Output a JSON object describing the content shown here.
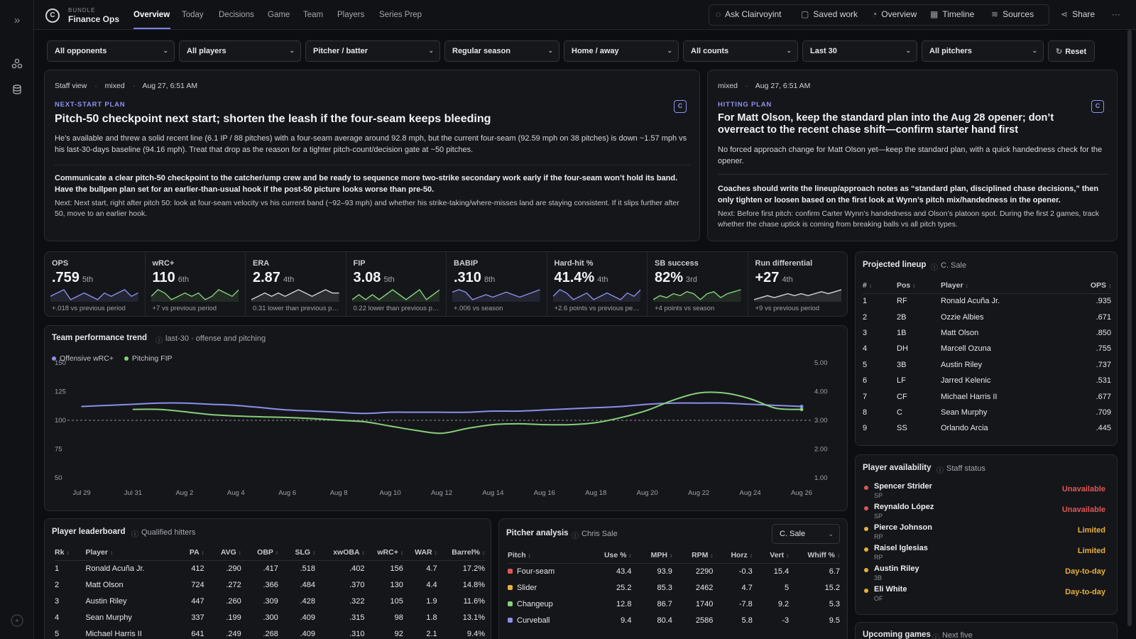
{
  "header": {
    "bundle_label": "BUNDLE",
    "bundle_name": "Finance Ops",
    "tabs": [
      "Overview",
      "Today",
      "Decisions",
      "Game",
      "Team",
      "Players",
      "Series Prep"
    ],
    "actions": [
      "Ask Clairvoyint",
      "Saved work",
      "Overview",
      "Timeline",
      "Sources"
    ],
    "share": "Share",
    "more": "···"
  },
  "filters": {
    "items": [
      "All opponents",
      "All players",
      "Pitcher / batter",
      "Regular season",
      "Home / away",
      "All counts",
      "Last 30",
      "All pitchers"
    ],
    "reset": "Reset"
  },
  "plan_left": {
    "meta": [
      "Staff view",
      "mixed",
      "Aug 27, 6:51 AM"
    ],
    "eyebrow": "NEXT-START PLAN",
    "title": "Pitch-50 checkpoint next start; shorten the leash if the four-seam keeps bleeding",
    "body": "He’s available and threw a solid recent line (6.1 IP / 88 pitches) with a four-seam average around 92.8 mph, but the current four-seam (92.59 mph on 38 pitches) is down ~1.57 mph vs his last-30-days baseline (94.16 mph). Treat that drop as the reason for a tighter pitch-count/decision gate at ~50 pitches.",
    "bold": "Communicate a clear pitch-50 checkpoint to the catcher/ump crew and be ready to sequence more two-strike secondary work early if the four-seam won’t hold its band. Have the bullpen plan set for an earlier-than-usual hook if the post-50 picture looks worse than pre-50.",
    "next": "Next: Next start, right after pitch 50: look at four-seam velocity vs his current band (~92–93 mph) and whether his strike-taking/where-misses land are staying consistent. If it slips further after 50, move to an earlier hook."
  },
  "plan_right": {
    "meta": [
      "mixed",
      "Aug 27, 6:51 AM"
    ],
    "eyebrow": "HITTING PLAN",
    "title": "For Matt Olson, keep the standard plan into the Aug 28 opener; don’t overreact to the recent chase shift—confirm starter hand first",
    "body": "No forced approach change for Matt Olson yet—keep the standard plan, with a quick handedness check for the opener.",
    "bold": "Coaches should write the lineup/approach notes as “standard plan, disciplined chase decisions,” then only tighten or loosen based on the first look at Wynn’s pitch mix/handedness in the opener.",
    "next": "Next: Before first pitch: confirm Carter Wynn’s handedness and Olson’s platoon spot. During the first 2 games, track whether the chase uptick is coming from breaking balls vs all pitch types."
  },
  "kpis": [
    {
      "label": "OPS",
      "value": ".759",
      "rank": "5th",
      "delta": "+.018 vs previous period",
      "spark": [
        5,
        6,
        7,
        4,
        5,
        6,
        5,
        4,
        6,
        5,
        6,
        7,
        5,
        6
      ]
    },
    {
      "label": "wRC+",
      "value": "110",
      "rank": "6th",
      "delta": "+7 vs previous period",
      "spark": [
        5,
        7,
        6,
        4,
        5,
        6,
        5,
        6,
        4,
        5,
        7,
        6,
        5,
        7
      ]
    },
    {
      "label": "ERA",
      "value": "2.87",
      "rank": "4th",
      "delta": "0.31 lower than previous period",
      "spark": [
        4,
        5,
        6,
        5,
        6,
        5,
        6,
        7,
        6,
        5,
        6,
        7,
        6,
        6
      ]
    },
    {
      "label": "FIP",
      "value": "3.08",
      "rank": "5th",
      "delta": "0.22 lower than previous period",
      "spark": [
        5,
        6,
        5,
        6,
        5,
        6,
        7,
        6,
        5,
        6,
        7,
        5,
        6,
        7
      ]
    },
    {
      "label": "BABIP",
      "value": ".310",
      "rank": "8th",
      "delta": "+.006 vs season",
      "spark": [
        6,
        7,
        6,
        3,
        4,
        5,
        4,
        5,
        6,
        5,
        4,
        5,
        6,
        7
      ]
    },
    {
      "label": "Hard-hit %",
      "value": "41.4%",
      "rank": "4th",
      "delta": "+2.6 points vs previous period",
      "spark": [
        5,
        7,
        6,
        4,
        5,
        6,
        4,
        5,
        6,
        5,
        4,
        6,
        5,
        7
      ]
    },
    {
      "label": "SB success",
      "value": "82%",
      "rank": "3rd",
      "delta": "+4 points vs season",
      "spark": [
        3,
        5,
        4,
        6,
        5,
        7,
        6,
        3,
        6,
        7,
        4,
        6,
        7,
        8
      ]
    },
    {
      "label": "Run differential",
      "value": "+27",
      "rank": "4th",
      "delta": "+9 vs previous period",
      "spark": [
        3,
        4,
        5,
        4,
        5,
        6,
        5,
        6,
        5,
        6,
        7,
        6,
        7,
        8
      ]
    }
  ],
  "trend": {
    "title": "Team performance trend",
    "subtitle": "last-30 · offense and pitching",
    "series_names": [
      "Offensive wRC+",
      "Pitching FIP"
    ],
    "colors": {
      "offense": "#8a90e8",
      "pitching": "#86d07a",
      "ref": "#8b8e96"
    }
  },
  "chart_data": {
    "type": "line",
    "x": [
      "Jul 29",
      "Jul 30",
      "Jul 31",
      "Aug 1",
      "Aug 2",
      "Aug 3",
      "Aug 4",
      "Aug 5",
      "Aug 6",
      "Aug 7",
      "Aug 8",
      "Aug 9",
      "Aug 10",
      "Aug 11",
      "Aug 12",
      "Aug 13",
      "Aug 14",
      "Aug 15",
      "Aug 16",
      "Aug 17",
      "Aug 18",
      "Aug 19",
      "Aug 20",
      "Aug 21",
      "Aug 22",
      "Aug 23",
      "Aug 24",
      "Aug 25",
      "Aug 26"
    ],
    "x_ticks": [
      "Jul 29",
      "Jul 31",
      "Aug 2",
      "Aug 4",
      "Aug 6",
      "Aug 8",
      "Aug 10",
      "Aug 12",
      "Aug 14",
      "Aug 16",
      "Aug 18",
      "Aug 20",
      "Aug 22",
      "Aug 24",
      "Aug 26"
    ],
    "series": [
      {
        "name": "Offensive wRC+",
        "axis": "left",
        "values": [
          112,
          113,
          114,
          115,
          115,
          114,
          113,
          111,
          109,
          108,
          107,
          106,
          107,
          107,
          107,
          107,
          108,
          108,
          109,
          110,
          111,
          112,
          114,
          115,
          115,
          115,
          114,
          113,
          112
        ]
      },
      {
        "name": "Pitching FIP",
        "axis": "right",
        "values": [
          null,
          null,
          3.38,
          3.38,
          3.3,
          3.2,
          3.15,
          3.12,
          3.1,
          3.06,
          3.0,
          2.95,
          2.8,
          2.65,
          2.55,
          2.72,
          2.85,
          2.88,
          2.85,
          2.85,
          2.92,
          3.1,
          3.35,
          3.7,
          3.95,
          3.95,
          3.75,
          3.42,
          3.38
        ]
      }
    ],
    "y_left": {
      "ticks": [
        50,
        75,
        100,
        125,
        150
      ],
      "lim": [
        50,
        150
      ],
      "ref": 100
    },
    "y_right": {
      "ticks": [
        "1.00",
        "2.00",
        "3.00",
        "4.00",
        "5.00"
      ],
      "lim": [
        1,
        5
      ]
    }
  },
  "leaderboard": {
    "title": "Player leaderboard",
    "subtitle": "Qualified hitters",
    "columns": [
      "Rk",
      "Player",
      "PA",
      "AVG",
      "OBP",
      "SLG",
      "xwOBA",
      "wRC+",
      "WAR",
      "Barrel%"
    ],
    "rows": [
      [
        "1",
        "Ronald Acuña Jr.",
        "412",
        ".290",
        ".417",
        ".518",
        ".402",
        "156",
        "4.7",
        "17.2%"
      ],
      [
        "2",
        "Matt Olson",
        "724",
        ".272",
        ".366",
        ".484",
        ".370",
        "130",
        "4.4",
        "14.8%"
      ],
      [
        "3",
        "Austin Riley",
        "447",
        ".260",
        ".309",
        ".428",
        ".322",
        "105",
        "1.9",
        "11.6%"
      ],
      [
        "4",
        "Sean Murphy",
        "337",
        ".199",
        ".300",
        ".409",
        ".315",
        "98",
        "1.8",
        "13.1%"
      ],
      [
        "5",
        "Michael Harris II",
        "641",
        ".249",
        ".268",
        ".409",
        ".310",
        "92",
        "2.1",
        "9.4%"
      ]
    ]
  },
  "pitcher": {
    "title": "Pitcher analysis",
    "subtitle": "Chris Sale",
    "select": "C. Sale",
    "columns": [
      "Pitch",
      "Use %",
      "MPH",
      "RPM",
      "Horz",
      "Vert",
      "Whiff %"
    ],
    "rows": [
      {
        "color": "#e05656",
        "cells": [
          "Four-seam",
          "43.4",
          "93.9",
          "2290",
          "-0.3",
          "15.4",
          "6.7"
        ]
      },
      {
        "color": "#e8b03c",
        "cells": [
          "Slider",
          "25.2",
          "85.3",
          "2462",
          "4.7",
          "5",
          "15.2"
        ]
      },
      {
        "color": "#86d07a",
        "cells": [
          "Changeup",
          "12.8",
          "86.7",
          "1740",
          "-7.8",
          "9.2",
          "5.3"
        ]
      },
      {
        "color": "#8a90e8",
        "cells": [
          "Curveball",
          "9.4",
          "80.4",
          "2586",
          "5.8",
          "-3",
          "9.5"
        ]
      }
    ]
  },
  "lineup": {
    "title": "Projected lineup",
    "subtitle": "C. Sale",
    "columns": [
      "#",
      "Pos",
      "Player",
      "OPS"
    ],
    "rows": [
      [
        "1",
        "RF",
        "Ronald Acuña Jr.",
        ".935"
      ],
      [
        "2",
        "2B",
        "Ozzie Albies",
        ".671"
      ],
      [
        "3",
        "1B",
        "Matt Olson",
        ".850"
      ],
      [
        "4",
        "DH",
        "Marcell Ozuna",
        ".755"
      ],
      [
        "5",
        "3B",
        "Austin Riley",
        ".737"
      ],
      [
        "6",
        "LF",
        "Jarred Kelenic",
        ".531"
      ],
      [
        "7",
        "CF",
        "Michael Harris II",
        ".677"
      ],
      [
        "8",
        "C",
        "Sean Murphy",
        ".709"
      ],
      [
        "9",
        "SS",
        "Orlando Arcia",
        ".445"
      ]
    ]
  },
  "availability": {
    "title": "Player availability",
    "subtitle": "Staff status",
    "rows": [
      {
        "name": "Spencer Strider",
        "pos": "SP",
        "status": "Unavailable",
        "color": "#e05656"
      },
      {
        "name": "Reynaldo López",
        "pos": "SP",
        "status": "Unavailable",
        "color": "#e05656"
      },
      {
        "name": "Pierce Johnson",
        "pos": "RP",
        "status": "Limited",
        "color": "#e8b03c"
      },
      {
        "name": "Raisel Iglesias",
        "pos": "RP",
        "status": "Limited",
        "color": "#e8b03c"
      },
      {
        "name": "Austin Riley",
        "pos": "3B",
        "status": "Day-to-day",
        "color": "#e8b03c"
      },
      {
        "name": "Eli White",
        "pos": "OF",
        "status": "Day-to-day",
        "color": "#e8b03c"
      }
    ]
  },
  "upcoming": {
    "title": "Upcoming games",
    "subtitle": "Next five"
  },
  "icons": [
    "expand-rail-icon",
    "network-icon",
    "database-icon",
    "help-icon",
    "chat-icon",
    "saved-icon",
    "overview-icon",
    "timeline-icon",
    "sources-icon",
    "share-icon",
    "reset-icon",
    "info-icon",
    "chevron-down-icon",
    "clairvoyint-icon"
  ]
}
